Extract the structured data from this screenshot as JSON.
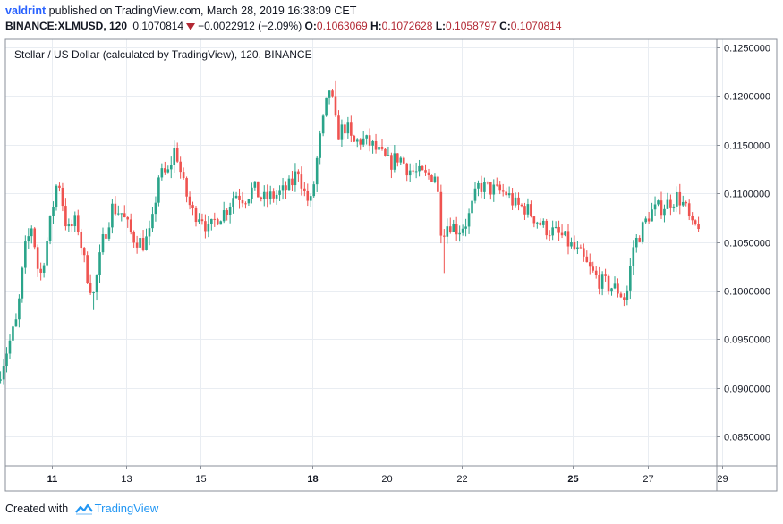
{
  "header": {
    "author": "valdrint",
    "published_text": "published on TradingView.com, March 28, 2019 16:38:09 CET",
    "symbol": "BINANCE:XLMUSD, 120",
    "last_price": "0.1070814",
    "change": "−0.0022912 (−2.09%)",
    "o_label": "O:",
    "o_value": "0.1063069",
    "h_label": "H:",
    "h_value": "0.1072628",
    "l_label": "L:",
    "l_value": "0.1058797",
    "c_label": "C:",
    "c_value": "0.1070814"
  },
  "footer": {
    "created_with": "Created with",
    "brand": "TradingView"
  },
  "colors": {
    "up": "#2aa48a",
    "down": "#ef5350",
    "grid": "#e9edf2",
    "price_red": "#b22833"
  },
  "chart_data": {
    "type": "candlestick",
    "title": "Stellar / US Dollar (calculated by TradingView), 120, BINANCE",
    "x_tick_labels": [
      "11",
      "13",
      "15",
      "18",
      "20",
      "22",
      "25",
      "27",
      "29"
    ],
    "y_tick_labels": [
      "0.1250000",
      "0.1200000",
      "0.1150000",
      "0.1100000",
      "0.1050000",
      "0.1000000",
      "0.0950000",
      "0.0900000",
      "0.0850000"
    ],
    "ylim": [
      0.082,
      0.1258
    ],
    "grid": true,
    "x_unit": "day of March 2019",
    "x_range": [
      9.6,
      29.1
    ],
    "anchors": [
      [
        9.6,
        0.0905
      ],
      [
        9.9,
        0.0942
      ],
      [
        10.15,
        0.097
      ],
      [
        10.35,
        0.104
      ],
      [
        10.55,
        0.1068
      ],
      [
        10.75,
        0.101
      ],
      [
        10.95,
        0.105
      ],
      [
        11.25,
        0.1118
      ],
      [
        11.5,
        0.106
      ],
      [
        11.75,
        0.1072
      ],
      [
        12.0,
        0.102
      ],
      [
        12.2,
        0.0995
      ],
      [
        12.45,
        0.105
      ],
      [
        12.7,
        0.1085
      ],
      [
        12.95,
        0.108
      ],
      [
        13.25,
        0.1055
      ],
      [
        13.55,
        0.1048
      ],
      [
        13.75,
        0.106
      ],
      [
        13.95,
        0.1118
      ],
      [
        14.2,
        0.112
      ],
      [
        14.4,
        0.1148
      ],
      [
        14.6,
        0.111
      ],
      [
        14.85,
        0.108
      ],
      [
        15.1,
        0.1078
      ],
      [
        15.3,
        0.106
      ],
      [
        15.5,
        0.1075
      ],
      [
        15.75,
        0.1082
      ],
      [
        16.0,
        0.11
      ],
      [
        16.25,
        0.1095
      ],
      [
        16.5,
        0.1105
      ],
      [
        16.75,
        0.1093
      ],
      [
        17.0,
        0.1097
      ],
      [
        17.25,
        0.11
      ],
      [
        17.5,
        0.1108
      ],
      [
        17.7,
        0.1125
      ],
      [
        17.9,
        0.1095
      ],
      [
        18.05,
        0.109
      ],
      [
        18.25,
        0.1148
      ],
      [
        18.55,
        0.121
      ],
      [
        18.75,
        0.116
      ],
      [
        19.0,
        0.117
      ],
      [
        19.15,
        0.115
      ],
      [
        19.4,
        0.1155
      ],
      [
        19.65,
        0.115
      ],
      [
        19.9,
        0.114
      ],
      [
        20.15,
        0.113
      ],
      [
        20.4,
        0.1138
      ],
      [
        20.65,
        0.1125
      ],
      [
        20.9,
        0.112
      ],
      [
        21.15,
        0.1117
      ],
      [
        21.4,
        0.112
      ],
      [
        21.55,
        0.106
      ],
      [
        21.75,
        0.107
      ],
      [
        22.0,
        0.1062
      ],
      [
        22.25,
        0.1072
      ],
      [
        22.55,
        0.1108
      ],
      [
        22.8,
        0.1105
      ],
      [
        23.05,
        0.1102
      ],
      [
        23.3,
        0.11
      ],
      [
        23.55,
        0.1087
      ],
      [
        23.8,
        0.1085
      ],
      [
        24.05,
        0.1075
      ],
      [
        24.3,
        0.1065
      ],
      [
        24.55,
        0.106
      ],
      [
        24.8,
        0.1055
      ],
      [
        25.05,
        0.1045
      ],
      [
        25.3,
        0.1035
      ],
      [
        25.55,
        0.102
      ],
      [
        25.8,
        0.101
      ],
      [
        26.05,
        0.1005
      ],
      [
        26.3,
        0.1
      ],
      [
        26.5,
        0.099
      ],
      [
        26.7,
        0.1045
      ],
      [
        26.9,
        0.106
      ],
      [
        27.15,
        0.108
      ],
      [
        27.4,
        0.1085
      ],
      [
        27.65,
        0.109
      ],
      [
        27.9,
        0.1097
      ],
      [
        28.1,
        0.1085
      ],
      [
        28.3,
        0.1062
      ],
      [
        28.45,
        0.1069
      ]
    ],
    "notable_wicks": [
      {
        "x": 12.1,
        "low": 0.098
      },
      {
        "x": 21.55,
        "low": 0.1018
      },
      {
        "x": 18.6,
        "high": 0.1215
      },
      {
        "x": 26.45,
        "low": 0.0985
      }
    ]
  }
}
